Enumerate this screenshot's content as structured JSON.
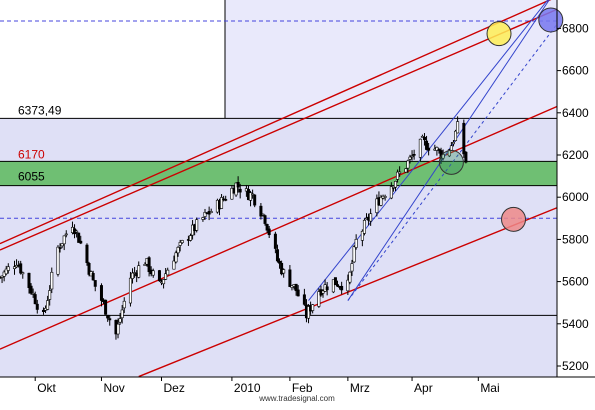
{
  "chart_data": {
    "type": "candlestick",
    "ylim": [
      5150,
      6950
    ],
    "y_ticks": [
      5200,
      5400,
      5600,
      5800,
      6000,
      6200,
      6400,
      6600,
      6800
    ],
    "y_tick_labels": [
      "5200",
      "5400",
      "5600",
      "5800",
      "6000",
      "6200",
      "6400",
      "6600",
      "6800"
    ],
    "x_labels": [
      "Okt",
      "Nov",
      "Dez",
      "2010",
      "Feb",
      "Mrz",
      "Apr",
      "Mai"
    ],
    "x_label_positions": [
      "2009-10-01",
      "2009-11-02",
      "2009-12-01",
      "2010-01-04",
      "2010-02-01",
      "2010-03-01",
      "2010-04-01",
      "2010-05-03"
    ],
    "date_range": [
      "2009-09-14",
      "2010-06-10"
    ],
    "grid": false,
    "levels": [
      {
        "name": "6373,49",
        "value": 6373.49,
        "color": "#000000"
      },
      {
        "name": "6170",
        "value": 6170,
        "color": "#cc0000"
      },
      {
        "name": "6055",
        "value": 6055,
        "color": "#000000"
      },
      {
        "name": "",
        "value": 5440,
        "color": "#000000"
      }
    ],
    "dashed_levels": [
      6835,
      5900
    ],
    "zone": {
      "from": 6055,
      "to": 6170,
      "color": "#5cb85c"
    },
    "close_series": [
      [
        "2009-09-14",
        5620
      ],
      [
        "2009-09-22",
        5700
      ],
      [
        "2009-09-29",
        5560
      ],
      [
        "2009-10-05",
        5430
      ],
      [
        "2009-10-12",
        5760
      ],
      [
        "2009-10-19",
        5880
      ],
      [
        "2009-10-23",
        5780
      ],
      [
        "2009-10-29",
        5600
      ],
      [
        "2009-11-04",
        5470
      ],
      [
        "2009-11-09",
        5350
      ],
      [
        "2009-11-16",
        5620
      ],
      [
        "2009-11-23",
        5700
      ],
      [
        "2009-11-30",
        5580
      ],
      [
        "2009-12-07",
        5720
      ],
      [
        "2009-12-14",
        5820
      ],
      [
        "2009-12-21",
        5900
      ],
      [
        "2009-12-30",
        5980
      ],
      [
        "2010-01-06",
        6060
      ],
      [
        "2010-01-11",
        6020
      ],
      [
        "2010-01-14",
        6010
      ],
      [
        "2010-01-20",
        5900
      ],
      [
        "2010-01-26",
        5700
      ],
      [
        "2010-01-29",
        5640
      ],
      [
        "2010-02-04",
        5560
      ],
      [
        "2010-02-09",
        5440
      ],
      [
        "2010-02-15",
        5560
      ],
      [
        "2010-02-22",
        5600
      ],
      [
        "2010-03-01",
        5580
      ],
      [
        "2010-03-05",
        5790
      ],
      [
        "2010-03-11",
        5900
      ],
      [
        "2010-03-16",
        5990
      ],
      [
        "2010-03-22",
        6060
      ],
      [
        "2010-03-29",
        6150
      ],
      [
        "2010-04-06",
        6260
      ],
      [
        "2010-04-12",
        6230
      ],
      [
        "2010-04-16",
        6200
      ],
      [
        "2010-04-20",
        6250
      ],
      [
        "2010-04-23",
        6330
      ],
      [
        "2010-04-27",
        6170
      ]
    ],
    "trend_lines": [
      {
        "color": "#cc0000",
        "from": [
          "2009-09-14",
          5780
        ],
        "to": [
          "2010-06-10",
          6950
        ]
      },
      {
        "color": "#cc0000",
        "from": [
          "2009-09-14",
          5750
        ],
        "to": [
          "2010-06-10",
          6890
        ]
      },
      {
        "color": "#cc0000",
        "from": [
          "2009-09-14",
          5280
        ],
        "to": [
          "2010-06-10",
          6430
        ]
      },
      {
        "color": "#cc0000",
        "from": [
          "2009-11-20",
          5150
        ],
        "to": [
          "2010-06-10",
          5950
        ]
      },
      {
        "color": "#3344cc",
        "from": [
          "2010-02-10",
          5510
        ],
        "to": [
          "2010-06-10",
          6990
        ]
      },
      {
        "color": "#3344cc",
        "from": [
          "2010-03-01",
          5510
        ],
        "to": [
          "2010-06-10",
          6990
        ]
      },
      {
        "color": "#3344cc",
        "from": [
          "2010-03-01",
          5510
        ],
        "to": [
          "2010-06-10",
          6820
        ],
        "dashed": true
      }
    ],
    "markers": [
      {
        "color": "#ffee55",
        "at": [
          "2010-05-13",
          6775
        ]
      },
      {
        "color": "#7777ee",
        "at": [
          "2010-06-07",
          6840
        ]
      },
      {
        "color": "#2e8b57",
        "at": [
          "2010-04-20",
          6165
        ],
        "hollow": true
      },
      {
        "color": "#ee8888",
        "at": [
          "2010-05-20",
          5895
        ]
      }
    ]
  },
  "footer": "www.tradesignal.com"
}
